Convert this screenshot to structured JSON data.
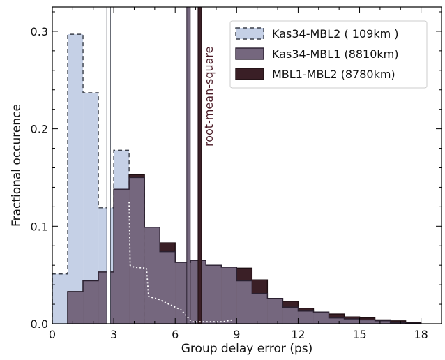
{
  "chart_data": {
    "type": "histogram",
    "xlabel": "Group delay error  (ps)",
    "ylabel": "Fractional occurence",
    "xlim": [
      0,
      19
    ],
    "ylim": [
      0,
      0.325
    ],
    "x_ticks": [
      0,
      3,
      6,
      9,
      12,
      15,
      18
    ],
    "x_tick_labels": [
      "0",
      "3",
      "6",
      "9",
      "12",
      "15",
      "18"
    ],
    "y_ticks": [
      0.0,
      0.1,
      0.2,
      0.3
    ],
    "y_tick_labels": [
      "0.0",
      "0.1",
      "0.2",
      "0.3"
    ],
    "bin_width": 0.75,
    "legend_position": "top-right",
    "annotation": "root-mean-square",
    "series": [
      {
        "name": "Kas34-MBL2 ( 109km )",
        "fill": "#c5d0e6",
        "edge": "#3a3f4a",
        "dashed": true,
        "bin_starts": [
          0,
          0.75,
          1.5,
          2.25,
          3.0,
          3.75
        ],
        "values": [
          0.051,
          0.297,
          0.237,
          0.119,
          0.178,
          0.142
        ],
        "rms": 2.75
      },
      {
        "name": "MBL1-MBL2  (8780km)",
        "fill": "#3a1f26",
        "edge": "#1e0f13",
        "dashed": false,
        "bin_starts": [
          0.75,
          1.5,
          2.25,
          3.0,
          3.75,
          4.5,
          5.25,
          6.0,
          6.75,
          7.5,
          8.25,
          9.0,
          9.75,
          10.5,
          11.25,
          12.0,
          12.75,
          13.5,
          14.25,
          15.0,
          15.75,
          16.5,
          17.25
        ],
        "values": [
          0.033,
          0.044,
          0.053,
          0.138,
          0.153,
          0.099,
          0.083,
          0.063,
          0.065,
          0.06,
          0.058,
          0.057,
          0.045,
          0.026,
          0.023,
          0.016,
          0.012,
          0.01,
          0.007,
          0.006,
          0.004,
          0.003,
          0.001
        ],
        "rms": 7.2
      },
      {
        "name": "Kas34-MBL1 (8810km)",
        "fill": "#75677e",
        "edge": "#2a2030",
        "dashed": false,
        "bin_starts": [
          0.75,
          1.5,
          2.25,
          3.0,
          3.75,
          4.5,
          5.25,
          6.0,
          6.75,
          7.5,
          8.25,
          9.0,
          9.75,
          10.5,
          11.25,
          12.0,
          12.75,
          13.5,
          14.25,
          15.0,
          15.75,
          16.5,
          17.25
        ],
        "values": [
          0.033,
          0.044,
          0.053,
          0.138,
          0.15,
          0.099,
          0.074,
          0.063,
          0.065,
          0.06,
          0.058,
          0.044,
          0.031,
          0.026,
          0.017,
          0.013,
          0.012,
          0.006,
          0.005,
          0.004,
          0.003,
          0.001,
          0.0005
        ],
        "rms": 6.65
      }
    ],
    "dotted_curve": {
      "color": "#ffffff",
      "x": [
        3.75,
        3.8,
        4.0,
        4.6,
        4.7,
        5.2,
        6.3,
        6.8,
        8.3,
        8.8
      ],
      "y": [
        0.125,
        0.06,
        0.058,
        0.057,
        0.028,
        0.025,
        0.014,
        0.002,
        0.002,
        0.004
      ]
    },
    "legend": [
      {
        "label": "Kas34-MBL2 ( 109km )",
        "series": 0
      },
      {
        "label": "Kas34-MBL1 (8810km)",
        "series": 2
      },
      {
        "label": "MBL1-MBL2  (8780km)",
        "series": 1
      }
    ]
  }
}
